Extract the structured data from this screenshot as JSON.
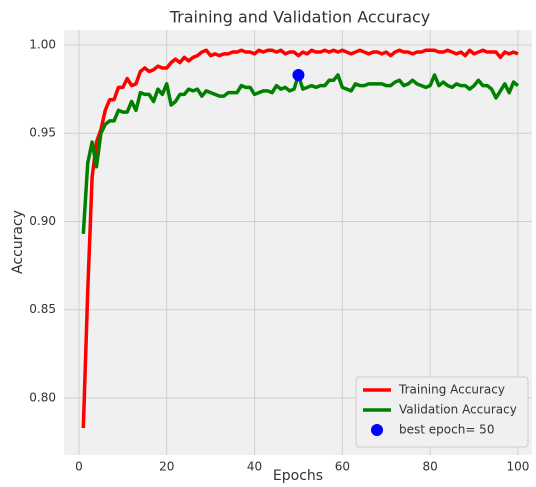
{
  "chart_data": {
    "type": "line",
    "title": "Training and Validation Accuracy",
    "xlabel": "Epochs",
    "ylabel": "Accuracy",
    "x": [
      1,
      2,
      3,
      4,
      5,
      6,
      7,
      8,
      9,
      10,
      11,
      12,
      13,
      14,
      15,
      16,
      17,
      18,
      19,
      20,
      21,
      22,
      23,
      24,
      25,
      26,
      27,
      28,
      29,
      30,
      31,
      32,
      33,
      34,
      35,
      36,
      37,
      38,
      39,
      40,
      41,
      42,
      43,
      44,
      45,
      46,
      47,
      48,
      49,
      50,
      51,
      52,
      53,
      54,
      55,
      56,
      57,
      58,
      59,
      60,
      61,
      62,
      63,
      64,
      65,
      66,
      67,
      68,
      69,
      70,
      71,
      72,
      73,
      74,
      75,
      76,
      77,
      78,
      79,
      80,
      81,
      82,
      83,
      84,
      85,
      86,
      87,
      88,
      89,
      90,
      91,
      92,
      93,
      94,
      95,
      96,
      97,
      98,
      99,
      100
    ],
    "series": [
      {
        "name": "Training Accuracy",
        "color": "#ff0000",
        "values": [
          0.783,
          0.86,
          0.925,
          0.945,
          0.952,
          0.963,
          0.969,
          0.969,
          0.976,
          0.976,
          0.981,
          0.977,
          0.978,
          0.985,
          0.987,
          0.985,
          0.986,
          0.988,
          0.987,
          0.987,
          0.99,
          0.992,
          0.99,
          0.993,
          0.991,
          0.993,
          0.994,
          0.996,
          0.997,
          0.994,
          0.995,
          0.994,
          0.995,
          0.995,
          0.996,
          0.996,
          0.997,
          0.996,
          0.996,
          0.995,
          0.997,
          0.996,
          0.997,
          0.997,
          0.996,
          0.997,
          0.995,
          0.996,
          0.996,
          0.994,
          0.996,
          0.995,
          0.997,
          0.996,
          0.996,
          0.997,
          0.996,
          0.997,
          0.996,
          0.997,
          0.996,
          0.995,
          0.996,
          0.997,
          0.996,
          0.995,
          0.996,
          0.996,
          0.995,
          0.996,
          0.994,
          0.996,
          0.997,
          0.996,
          0.996,
          0.995,
          0.996,
          0.996,
          0.997,
          0.997,
          0.997,
          0.996,
          0.996,
          0.997,
          0.996,
          0.995,
          0.996,
          0.994,
          0.997,
          0.995,
          0.996,
          0.997,
          0.996,
          0.996,
          0.996,
          0.993,
          0.996,
          0.995,
          0.996,
          0.995
        ]
      },
      {
        "name": "Validation Accuracy",
        "color": "#008000",
        "values": [
          0.893,
          0.933,
          0.945,
          0.931,
          0.95,
          0.955,
          0.957,
          0.957,
          0.963,
          0.962,
          0.962,
          0.968,
          0.963,
          0.973,
          0.972,
          0.972,
          0.968,
          0.975,
          0.972,
          0.978,
          0.966,
          0.968,
          0.972,
          0.972,
          0.975,
          0.974,
          0.975,
          0.971,
          0.974,
          0.973,
          0.972,
          0.971,
          0.971,
          0.973,
          0.973,
          0.973,
          0.977,
          0.976,
          0.976,
          0.972,
          0.973,
          0.974,
          0.974,
          0.973,
          0.977,
          0.975,
          0.976,
          0.974,
          0.975,
          0.983,
          0.975,
          0.976,
          0.977,
          0.976,
          0.977,
          0.977,
          0.98,
          0.98,
          0.983,
          0.976,
          0.975,
          0.974,
          0.978,
          0.977,
          0.977,
          0.978,
          0.978,
          0.978,
          0.978,
          0.977,
          0.977,
          0.979,
          0.98,
          0.977,
          0.978,
          0.98,
          0.978,
          0.977,
          0.976,
          0.977,
          0.983,
          0.977,
          0.979,
          0.977,
          0.976,
          0.978,
          0.977,
          0.977,
          0.975,
          0.977,
          0.98,
          0.977,
          0.977,
          0.975,
          0.97,
          0.974,
          0.978,
          0.973,
          0.979,
          0.977
        ]
      }
    ],
    "best_point": {
      "name": "best epoch= 50",
      "color": "#0000ff",
      "x": 50,
      "y": 0.983
    },
    "xlim": [
      -3.4,
      103.2
    ],
    "xticks": [
      0,
      20,
      40,
      60,
      80,
      100
    ],
    "ylim": [
      0.7677,
      1.0085
    ],
    "yticks": [
      {
        "value": 0.8,
        "label": "0.80"
      },
      {
        "value": 0.85,
        "label": "0.85"
      },
      {
        "value": 0.9,
        "label": "0.90"
      },
      {
        "value": 0.95,
        "label": "0.95"
      },
      {
        "value": 1.0,
        "label": "1.00"
      }
    ],
    "grid": true,
    "legend": "lower right"
  }
}
